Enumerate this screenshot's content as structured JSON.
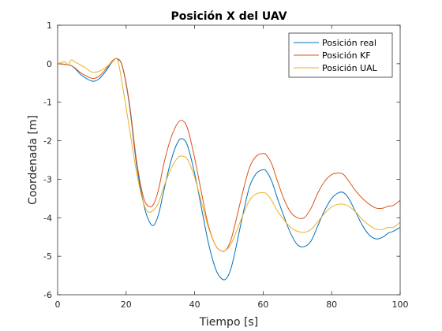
{
  "chart_data": {
    "type": "line",
    "title": "Posición X del UAV",
    "xlabel": "Tiempo [s]",
    "ylabel": "Coordenada [m]",
    "xlim": [
      0,
      100
    ],
    "ylim": [
      -6,
      1
    ],
    "xticks": [
      0,
      20,
      40,
      60,
      80,
      100
    ],
    "yticks": [
      1,
      0,
      -1,
      -2,
      -3,
      -4,
      -5,
      -6
    ],
    "grid": false,
    "legend_position": "top-right",
    "series": [
      {
        "name": "Posición real",
        "color": "#0072BD",
        "x": [
          0,
          4,
          7,
          10,
          12,
          14,
          16,
          17.5,
          19,
          21,
          23,
          25,
          26.5,
          28,
          29.5,
          31,
          33,
          35,
          36.5,
          38,
          40,
          42,
          44,
          46,
          47.5,
          49,
          50.5,
          52,
          54,
          56,
          58,
          60,
          61,
          62.5,
          64,
          66,
          68,
          70,
          72,
          74,
          76,
          78,
          80,
          82,
          83.5,
          85,
          87,
          89,
          91,
          93,
          95,
          96.5,
          98,
          100
        ],
        "y": [
          0,
          -0.05,
          -0.3,
          -0.45,
          -0.4,
          -0.2,
          0.05,
          0.13,
          -0.1,
          -1.1,
          -2.6,
          -3.6,
          -4.05,
          -4.2,
          -3.9,
          -3.3,
          -2.55,
          -2.05,
          -1.95,
          -2.15,
          -2.85,
          -3.75,
          -4.65,
          -5.3,
          -5.55,
          -5.6,
          -5.35,
          -4.8,
          -3.95,
          -3.2,
          -2.85,
          -2.75,
          -2.8,
          -3.05,
          -3.45,
          -3.95,
          -4.4,
          -4.7,
          -4.75,
          -4.6,
          -4.2,
          -3.8,
          -3.5,
          -3.35,
          -3.35,
          -3.5,
          -3.85,
          -4.2,
          -4.45,
          -4.55,
          -4.5,
          -4.4,
          -4.35,
          -4.25
        ]
      },
      {
        "name": "Posición KF",
        "color": "#D95319",
        "x": [
          0,
          4,
          7,
          10,
          12,
          14,
          16,
          17.5,
          19,
          21,
          23,
          25,
          26.5,
          28,
          29.5,
          31,
          33,
          35,
          36.5,
          38,
          40,
          42,
          44,
          46,
          47.5,
          49,
          50.5,
          52,
          54,
          56,
          58,
          60,
          61,
          62.5,
          64,
          66,
          68,
          70,
          72,
          74,
          76,
          78,
          80,
          82,
          83.5,
          85,
          87,
          89,
          91,
          93,
          95,
          96.5,
          98,
          100
        ],
        "y": [
          0,
          -0.05,
          -0.25,
          -0.38,
          -0.33,
          -0.15,
          0.08,
          0.12,
          -0.1,
          -1.05,
          -2.5,
          -3.45,
          -3.7,
          -3.65,
          -3.25,
          -2.6,
          -1.95,
          -1.55,
          -1.48,
          -1.7,
          -2.45,
          -3.35,
          -4.2,
          -4.7,
          -4.85,
          -4.85,
          -4.6,
          -4.1,
          -3.35,
          -2.7,
          -2.4,
          -2.33,
          -2.38,
          -2.6,
          -3.0,
          -3.5,
          -3.85,
          -4.0,
          -4.0,
          -3.75,
          -3.35,
          -3.05,
          -2.88,
          -2.84,
          -2.88,
          -3.05,
          -3.3,
          -3.5,
          -3.65,
          -3.75,
          -3.75,
          -3.7,
          -3.68,
          -3.55
        ]
      },
      {
        "name": "Posición UAL",
        "color": "#EDB120",
        "x": [
          0,
          2,
          3,
          4,
          5,
          6,
          8,
          10,
          12,
          14,
          16,
          17.5,
          19,
          21,
          23,
          25,
          26.5,
          28,
          29.5,
          31,
          33,
          35,
          36.5,
          38,
          40,
          42,
          44,
          46,
          47.5,
          49,
          50.5,
          52,
          54,
          56,
          58,
          60,
          61,
          62.5,
          64,
          66,
          68,
          70,
          72,
          74,
          76,
          78,
          80,
          82,
          83.5,
          85,
          87,
          89,
          91,
          93,
          95,
          96.5,
          98,
          100
        ],
        "y": [
          0,
          0.05,
          -0.02,
          0.1,
          0.05,
          0.0,
          -0.1,
          -0.22,
          -0.2,
          -0.1,
          0.05,
          0.1,
          -0.6,
          -1.7,
          -2.8,
          -3.6,
          -3.85,
          -3.8,
          -3.6,
          -3.2,
          -2.75,
          -2.45,
          -2.4,
          -2.5,
          -2.95,
          -3.6,
          -4.25,
          -4.7,
          -4.85,
          -4.85,
          -4.7,
          -4.4,
          -3.95,
          -3.55,
          -3.38,
          -3.35,
          -3.38,
          -3.55,
          -3.8,
          -4.05,
          -4.25,
          -4.35,
          -4.38,
          -4.3,
          -4.1,
          -3.88,
          -3.72,
          -3.65,
          -3.65,
          -3.7,
          -3.85,
          -4.05,
          -4.2,
          -4.3,
          -4.3,
          -4.25,
          -4.25,
          -4.12
        ]
      }
    ]
  }
}
